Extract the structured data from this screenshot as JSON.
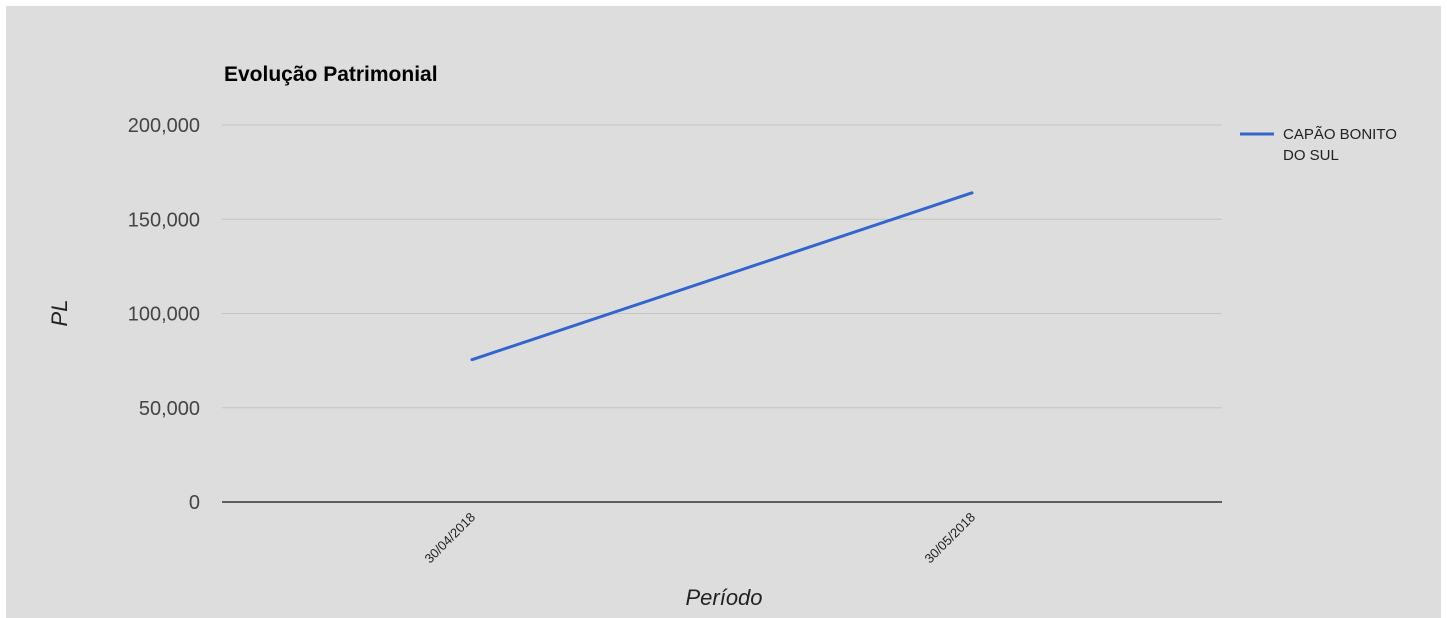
{
  "chart_data": {
    "type": "line",
    "title": "Evolução Patrimonial",
    "xlabel": "Período",
    "ylabel": "PL",
    "x": [
      "30/04/2018",
      "30/05/2018"
    ],
    "series": [
      {
        "name": "CAPÃO BONITO DO SUL",
        "name_lines": [
          "CAPÃO BONITO",
          "DO SUL"
        ],
        "values": [
          75500,
          164000
        ],
        "color": "#3366cc"
      }
    ],
    "yticks": [
      0,
      50000,
      100000,
      150000,
      200000
    ],
    "ytick_labels": [
      "0",
      "50,000",
      "100,000",
      "150,000",
      "200,000"
    ],
    "ylim": [
      0,
      200000
    ],
    "grid": true,
    "legend": "right",
    "background": "#dddddd",
    "gridline_color": "#c4c4c4",
    "baseline_color": "#333333"
  }
}
